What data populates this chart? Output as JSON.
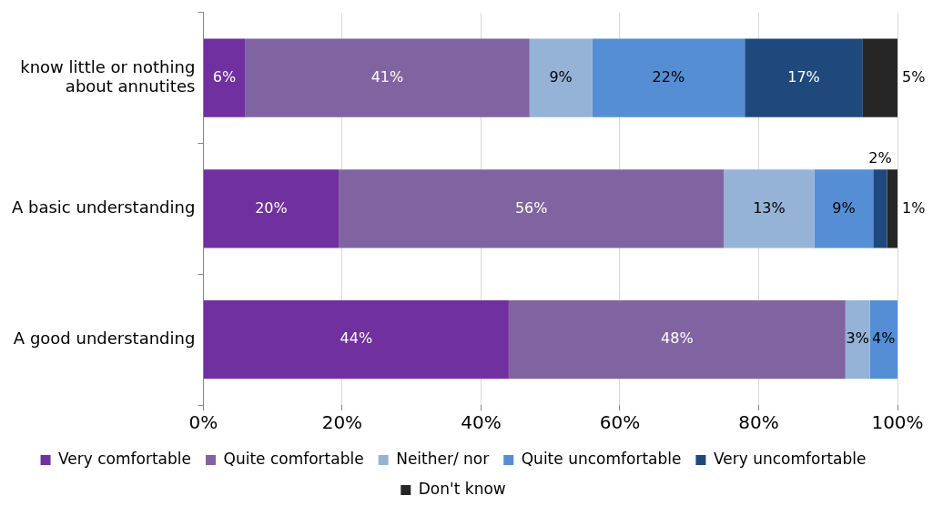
{
  "chart_data": {
    "type": "bar",
    "orientation": "horizontal",
    "stacked": true,
    "categories": [
      "know little or nothing about annutites",
      "A basic understanding",
      "A good understanding"
    ],
    "series": [
      {
        "name": "Very comfortable",
        "color": "#7030a0",
        "values": [
          6,
          19.5,
          44
        ],
        "value_labels": [
          "6%",
          "20%",
          "44%"
        ]
      },
      {
        "name": "Quite comfortable",
        "color": "#8064a2",
        "values": [
          41,
          55.5,
          48.5
        ],
        "value_labels": [
          "41%",
          "56%",
          "48%"
        ]
      },
      {
        "name": "Neither/ nor",
        "color": "#95b3d7",
        "values": [
          9,
          13,
          3.5
        ],
        "value_labels": [
          "9%",
          "13%",
          "3%"
        ]
      },
      {
        "name": "Quite uncomfortable",
        "color": "#558ed5",
        "values": [
          22,
          8.5,
          4
        ],
        "value_labels": [
          "22%",
          "9%",
          "4%"
        ]
      },
      {
        "name": "Very uncomfortable",
        "color": "#1f497d",
        "values": [
          17,
          2,
          null
        ],
        "value_labels": [
          "17%",
          "2%",
          null
        ]
      },
      {
        "name": "Don't know",
        "color": "#262626",
        "values": [
          5,
          1.5,
          null
        ],
        "value_labels": [
          "5%",
          "1%",
          null
        ]
      }
    ],
    "xlim": [
      0,
      100
    ],
    "xticks": [
      {
        "value": 0,
        "label": "0%"
      },
      {
        "value": 20,
        "label": "20%"
      },
      {
        "value": 40,
        "label": "40%"
      },
      {
        "value": 60,
        "label": "60%"
      },
      {
        "value": 80,
        "label": "80%"
      },
      {
        "value": 100,
        "label": "100%"
      }
    ],
    "grid": "x",
    "legend": "bottom"
  }
}
